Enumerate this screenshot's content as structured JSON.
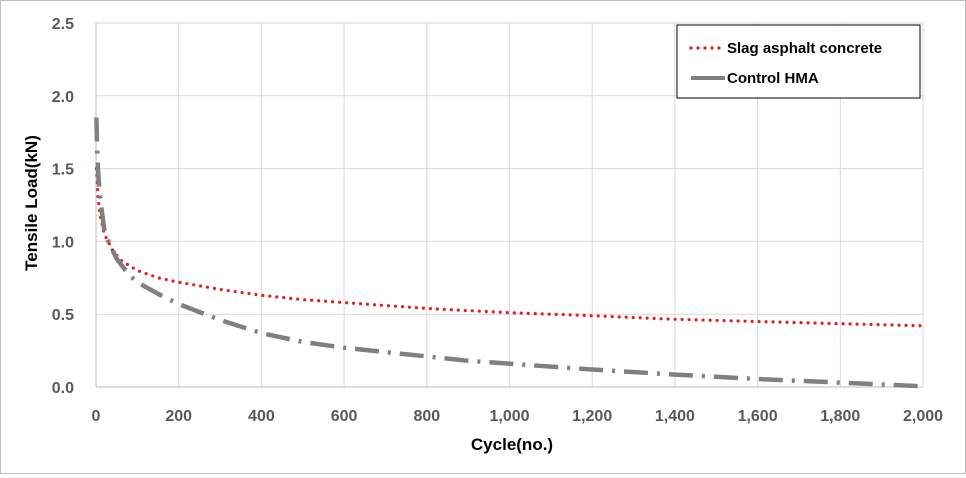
{
  "chart_data": {
    "type": "line",
    "title": "",
    "xlabel": "Cycle(no.)",
    "ylabel": "Tensile Load(kN)",
    "xlim": [
      0,
      2000
    ],
    "ylim": [
      0,
      2.5
    ],
    "x_ticks": [
      0,
      200,
      400,
      600,
      800,
      1000,
      1200,
      1400,
      1600,
      1800,
      2000
    ],
    "x_tick_labels": [
      "0",
      "200",
      "400",
      "600",
      "800",
      "1,000",
      "1,200",
      "1,400",
      "1,600",
      "1,800",
      "2,000"
    ],
    "y_ticks": [
      0,
      0.5,
      1.0,
      1.5,
      2.0,
      2.5
    ],
    "y_tick_labels": [
      "0.0",
      "0.5",
      "1.0",
      "1.5",
      "2.0",
      "2.5"
    ],
    "grid": true,
    "legend_position": "top-right",
    "series": [
      {
        "name": "Slag asphalt concrete",
        "color": "#e02020",
        "style": "dotted",
        "x": [
          1,
          5,
          10,
          20,
          40,
          60,
          100,
          150,
          200,
          300,
          400,
          500,
          600,
          700,
          800,
          900,
          1000,
          1200,
          1400,
          1600,
          1800,
          2000
        ],
        "y": [
          1.5,
          1.3,
          1.18,
          1.05,
          0.94,
          0.87,
          0.8,
          0.75,
          0.72,
          0.67,
          0.63,
          0.6,
          0.58,
          0.56,
          0.54,
          0.525,
          0.51,
          0.49,
          0.465,
          0.45,
          0.435,
          0.42
        ]
      },
      {
        "name": "Control HMA",
        "color": "#808080",
        "style": "dash-dot",
        "x": [
          1,
          3,
          5,
          8,
          12,
          20,
          30,
          50,
          80,
          100,
          150,
          200,
          300,
          400,
          500,
          600,
          700,
          800,
          900,
          1000,
          1200,
          1400,
          1600,
          1800,
          2000
        ],
        "y": [
          1.85,
          1.62,
          1.48,
          1.37,
          1.25,
          1.08,
          1.0,
          0.88,
          0.77,
          0.72,
          0.64,
          0.57,
          0.46,
          0.37,
          0.31,
          0.27,
          0.24,
          0.21,
          0.18,
          0.16,
          0.12,
          0.085,
          0.055,
          0.03,
          0.005
        ]
      }
    ]
  }
}
